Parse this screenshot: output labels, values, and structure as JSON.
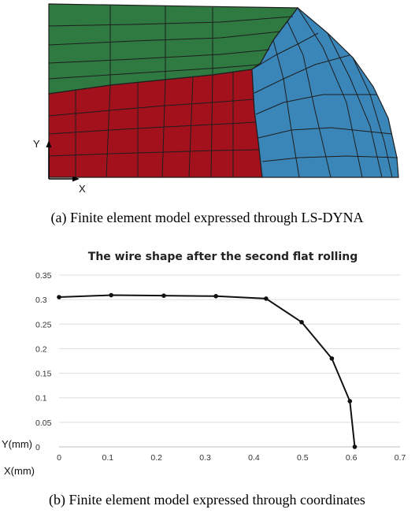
{
  "panel_a": {
    "axis_y_label": "Y",
    "axis_x_label": "X",
    "colors": {
      "top": "#2f7a40",
      "left": "#a3111c",
      "right": "#3a86b8",
      "mesh": "#1e1e1e"
    },
    "caption": "(a) Finite element model expressed through LS-DYNA"
  },
  "panel_b": {
    "caption": "(b) Finite element model expressed through coordinates"
  },
  "chart_data": {
    "type": "line",
    "title": "The wire shape after the second flat rolling",
    "xlabel": "X(mm)",
    "ylabel": "Y(mm)",
    "xlim": [
      0,
      0.7
    ],
    "ylim": [
      0,
      0.35
    ],
    "x_ticks": [
      "0",
      "0.1",
      "0.2",
      "0.3",
      "0.4",
      "0.5",
      "0.6",
      "0.7"
    ],
    "y_ticks": [
      "0",
      "0.05",
      "0.1",
      "0.15",
      "0.2",
      "0.25",
      "0.3",
      "0.35"
    ],
    "grid": "horizontal",
    "line_color": "#111111",
    "series": [
      {
        "x": [
          0,
          0.107,
          0.215,
          0.322,
          0.425,
          0.498,
          0.56,
          0.597,
          0.607
        ],
        "y": [
          0.305,
          0.309,
          0.308,
          0.307,
          0.302,
          0.254,
          0.18,
          0.093,
          0.0
        ]
      }
    ]
  }
}
